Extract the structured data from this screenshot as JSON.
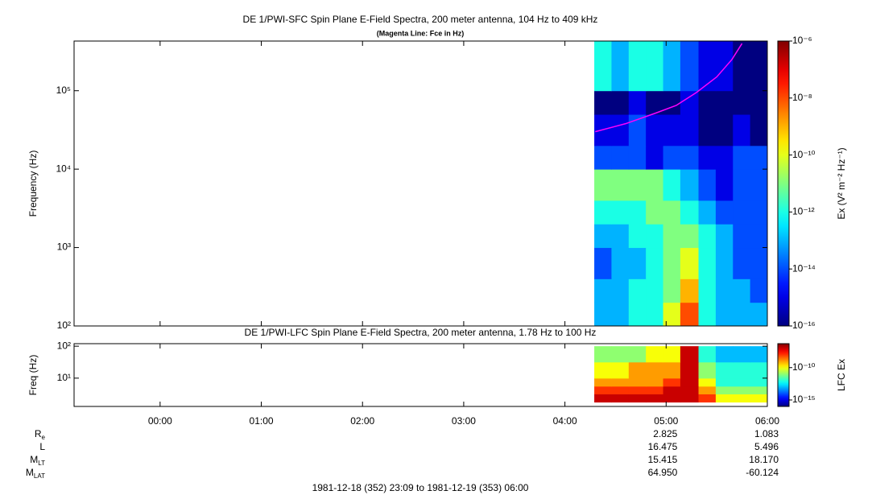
{
  "chart_data": [
    {
      "type": "heatmap",
      "title": "DE 1/PWI-SFC  Spin Plane E-Field Spectra, 200 meter antenna, 104 Hz to 409 kHz",
      "subtitle": "(Magenta Line: Fce in Hz)",
      "y_label": "Frequency (Hz)",
      "colorbar_label": "Ex (V² m⁻² Hz⁻¹)",
      "log_y": true,
      "xlim": [
        -0.85,
        6
      ],
      "ylim": [
        100,
        430000
      ],
      "yticks": [
        {
          "value": 100,
          "label": "10²"
        },
        {
          "value": 1000,
          "label": "10³"
        },
        {
          "value": 10000,
          "label": "10⁴"
        },
        {
          "value": 100000,
          "label": "10⁵"
        }
      ],
      "x_bins": [
        4.29,
        4.46,
        4.63,
        4.8,
        4.97,
        5.14,
        5.32,
        5.49,
        5.66,
        5.83,
        6.0
      ],
      "y_bins": [
        100,
        200,
        400,
        1000,
        2000,
        4000,
        10000,
        20000,
        50000,
        100000,
        430000
      ],
      "z": [
        [
          1e-13,
          1e-13,
          1e-12,
          1e-12,
          1e-10,
          1e-08,
          1e-12,
          1e-13,
          1e-13,
          1e-13
        ],
        [
          1e-13,
          1e-13,
          1e-12,
          1e-12,
          1e-11,
          1e-09,
          1e-12,
          1e-13,
          1e-13,
          1e-14
        ],
        [
          1e-14,
          1e-13,
          1e-13,
          1e-12,
          1e-11,
          1e-10,
          1e-12,
          1e-13,
          1e-14,
          1e-14
        ],
        [
          1e-13,
          1e-13,
          1e-12,
          1e-12,
          1e-11,
          1e-11,
          1e-12,
          1e-13,
          1e-14,
          1e-14
        ],
        [
          1e-12,
          1e-12,
          1e-12,
          1e-11,
          1e-11,
          1e-12,
          1e-13,
          1e-14,
          1e-14,
          1e-14
        ],
        [
          1e-11,
          1e-11,
          1e-11,
          1e-11,
          1e-12,
          1e-13,
          1e-14,
          1e-15,
          1e-14,
          1e-14
        ],
        [
          1e-14,
          1e-14,
          1e-14,
          1e-15,
          1e-14,
          1e-14,
          1e-15,
          1e-15,
          1e-14,
          1e-14
        ],
        [
          1e-15,
          1e-15,
          1e-14,
          1e-15,
          1e-15,
          1e-15,
          1e-16,
          1e-16,
          1e-15,
          1e-16
        ],
        [
          1e-16,
          1e-16,
          1e-15,
          1e-16,
          1e-16,
          1e-15,
          1e-16,
          1e-16,
          1e-16,
          1e-16
        ],
        [
          1e-12,
          1e-13,
          1e-12,
          1e-12,
          1e-13,
          1e-14,
          1e-15,
          1e-15,
          1e-16,
          1e-16
        ]
      ],
      "colorscale": "jet",
      "clim": [
        1e-16,
        1e-06
      ],
      "cticks": [
        {
          "value": 1e-06,
          "label": "10⁻⁶"
        },
        {
          "value": 1e-08,
          "label": "10⁻⁸"
        },
        {
          "value": 1e-10,
          "label": "10⁻¹⁰"
        },
        {
          "value": 1e-12,
          "label": "10⁻¹²"
        },
        {
          "value": 1e-14,
          "label": "10⁻¹⁴"
        },
        {
          "value": 1e-16,
          "label": "10⁻¹⁶"
        }
      ],
      "series": [
        {
          "color": "#ff00ff",
          "x": [
            4.3,
            4.6,
            4.9,
            5.1,
            5.3,
            5.5,
            5.65,
            5.75
          ],
          "values": [
            30000,
            38000,
            52000,
            65000,
            95000,
            150000,
            250000,
            400000
          ]
        }
      ]
    },
    {
      "type": "heatmap",
      "title": "DE 1/PWI-LFC  Spin Plane E-Field Spectra, 200 meter antenna, 1.78 Hz to 100 Hz",
      "y_label": "Freq (Hz)",
      "colorbar_label": "LFC Ex",
      "log_y": true,
      "xlim": [
        -0.85,
        6
      ],
      "xticks": [
        {
          "value": 0,
          "label": "00:00"
        },
        {
          "value": 1,
          "label": "01:00"
        },
        {
          "value": 2,
          "label": "02:00"
        },
        {
          "value": 3,
          "label": "03:00"
        },
        {
          "value": 4,
          "label": "04:00"
        },
        {
          "value": 5,
          "label": "05:00"
        },
        {
          "value": 6,
          "label": "06:00"
        }
      ],
      "ylim": [
        1.3,
        120
      ],
      "yticks": [
        {
          "value": 10,
          "label": "10¹"
        },
        {
          "value": 100,
          "label": "10²"
        }
      ],
      "x_bins": [
        4.29,
        4.46,
        4.63,
        4.8,
        4.97,
        5.14,
        5.32,
        5.49,
        5.66,
        5.83,
        6.0
      ],
      "y_bins": [
        1.78,
        3.2,
        5.6,
        10,
        32,
        100
      ],
      "z": [
        [
          1e-07,
          1e-07,
          1e-07,
          1e-07,
          1e-07,
          1e-07,
          1e-08,
          1e-10,
          1e-10,
          1e-10
        ],
        [
          1e-08,
          1e-08,
          1e-08,
          1e-08,
          1e-07,
          1e-07,
          1e-09,
          1e-11,
          1e-11,
          1e-11
        ],
        [
          1e-09,
          1e-09,
          1e-09,
          1e-09,
          1e-08,
          1e-07,
          1e-10,
          1e-12,
          1e-12,
          1e-12
        ],
        [
          1e-10,
          1e-10,
          1e-09,
          1e-09,
          1e-09,
          1e-07,
          1e-11,
          1e-12,
          1e-12,
          1e-12
        ],
        [
          1e-11,
          1e-11,
          1e-11,
          1e-10,
          1e-10,
          1e-07,
          1e-12,
          1e-13,
          1e-13,
          1e-13
        ]
      ],
      "colorscale": "jet",
      "clim": [
        1e-16,
        5e-07
      ],
      "cticks": [
        {
          "value": 1e-10,
          "label": "10⁻¹⁰"
        },
        {
          "value": 1e-15,
          "label": "10⁻¹⁵"
        }
      ]
    }
  ],
  "ephemeris": {
    "rows": [
      {
        "label": "R",
        "sub": "e",
        "values": [
          "2.825",
          "1.083"
        ]
      },
      {
        "label": "L",
        "sub": "",
        "values": [
          "16.475",
          "5.496"
        ]
      },
      {
        "label": "M",
        "sub": "LT",
        "values": [
          "15.415",
          "18.170"
        ]
      },
      {
        "label": "M",
        "sub": "LAT",
        "values": [
          "64.950",
          "-60.124"
        ]
      }
    ],
    "value_x": [
      5,
      6
    ]
  },
  "time_range": "1981-12-18 (352) 23:09 to 1981-12-19 (353) 06:00"
}
